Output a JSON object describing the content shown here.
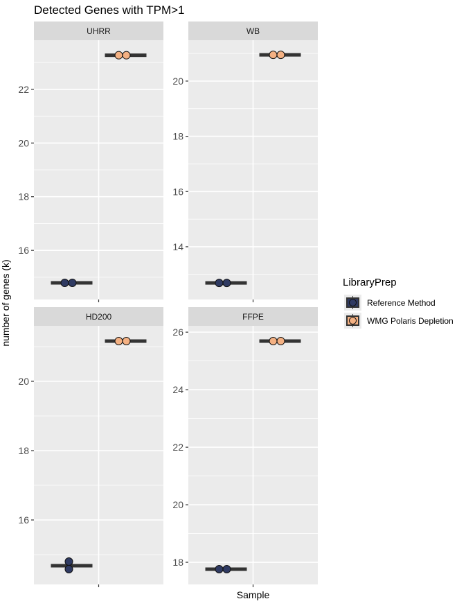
{
  "chart_data": {
    "type": "scatter",
    "subtype": "faceted dot plot with median crossbars",
    "title": "Detected Genes with TPM>1",
    "xlabel": "Sample",
    "ylabel": "number of genes (k)",
    "legend": {
      "title": "LibraryPrep",
      "placement": "right",
      "entries": [
        {
          "name": "Reference Method",
          "color": "#2f3a62"
        },
        {
          "name": "WMG Polaris Depletion",
          "color": "#f4b183"
        }
      ]
    },
    "grid": true,
    "panel_background": "#ebebeb",
    "strip_background": "#d9d9d9",
    "facets": [
      {
        "title": "UHRR",
        "ylim": [
          14.17,
          23.83
        ],
        "yticks": [
          16,
          18,
          20,
          22
        ],
        "ytick_labels": [
          "16",
          "18",
          "20",
          "22"
        ],
        "series": [
          {
            "name": "Reference Method",
            "points": [
              14.79,
              14.79
            ],
            "median": 14.79
          },
          {
            "name": "WMG Polaris Depletion",
            "points": [
              23.27,
              23.27
            ],
            "median": 23.27
          }
        ]
      },
      {
        "title": "WB",
        "ylim": [
          12.09,
          21.48
        ],
        "yticks": [
          14,
          16,
          18,
          20
        ],
        "ytick_labels": [
          "14",
          "16",
          "18",
          "20"
        ],
        "series": [
          {
            "name": "Reference Method",
            "points": [
              12.69,
              12.69
            ],
            "median": 12.69
          },
          {
            "name": "WMG Polaris Depletion",
            "points": [
              20.95,
              20.95
            ],
            "median": 20.95
          }
        ]
      },
      {
        "title": "HD200",
        "ylim": [
          14.14,
          21.6
        ],
        "yticks": [
          16,
          18,
          20
        ],
        "ytick_labels": [
          "16",
          "18",
          "20"
        ],
        "series": [
          {
            "name": "Reference Method",
            "points": [
              14.8,
              14.58
            ],
            "median": 14.68,
            "stacked": true
          },
          {
            "name": "WMG Polaris Depletion",
            "points": [
              21.16,
              21.16
            ],
            "median": 21.16
          }
        ]
      },
      {
        "title": "FFPE",
        "ylim": [
          17.23,
          26.22
        ],
        "yticks": [
          18,
          20,
          22,
          24,
          26
        ],
        "ytick_labels": [
          "18",
          "20",
          "22",
          "24",
          "26"
        ],
        "series": [
          {
            "name": "Reference Method",
            "points": [
              17.76,
              17.76
            ],
            "median": 17.76
          },
          {
            "name": "WMG Polaris Depletion",
            "points": [
              25.69,
              25.69
            ],
            "median": 25.69
          }
        ]
      }
    ]
  }
}
